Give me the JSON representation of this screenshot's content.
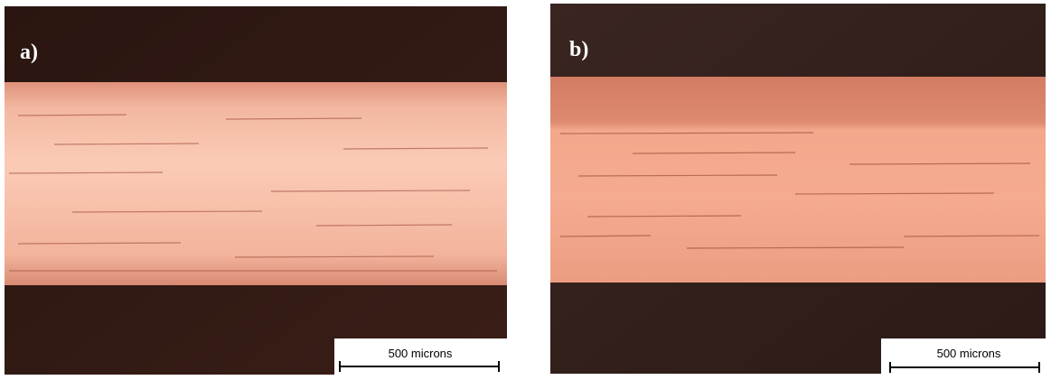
{
  "panels": [
    {
      "label": "a)",
      "scale_bar": "500 microns"
    },
    {
      "label": "b)",
      "scale_bar": "500 microns"
    }
  ]
}
